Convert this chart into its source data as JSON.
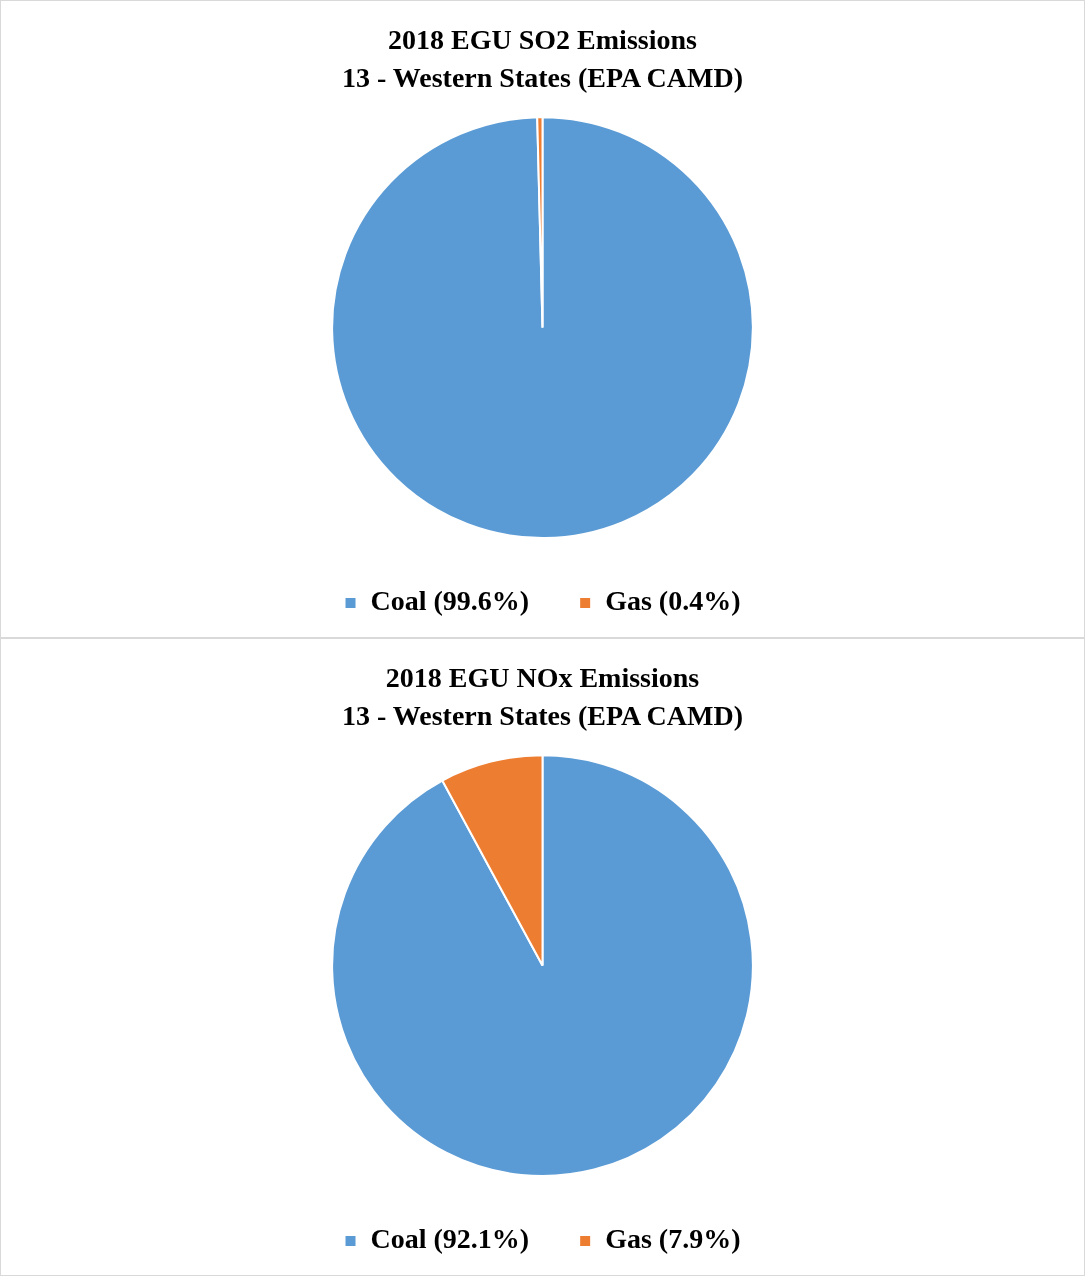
{
  "chart_data": [
    {
      "type": "pie",
      "title": "2018 EGU SO2 Emissions",
      "subtitle": "13 - Western States (EPA CAMD)",
      "categories": [
        "Coal (99.6%)",
        "Gas (0.4%)"
      ],
      "values": [
        99.6,
        0.4
      ],
      "colors": [
        "#5b9bd5",
        "#ed7d31"
      ],
      "legend": "bottom"
    },
    {
      "type": "pie",
      "title": "2018 EGU NOx Emissions",
      "subtitle": "13 - Western States (EPA CAMD)",
      "categories": [
        "Coal (92.1%)",
        "Gas (7.9%)"
      ],
      "values": [
        92.1,
        7.9
      ],
      "colors": [
        "#5b9bd5",
        "#ed7d31"
      ],
      "legend": "bottom"
    }
  ]
}
